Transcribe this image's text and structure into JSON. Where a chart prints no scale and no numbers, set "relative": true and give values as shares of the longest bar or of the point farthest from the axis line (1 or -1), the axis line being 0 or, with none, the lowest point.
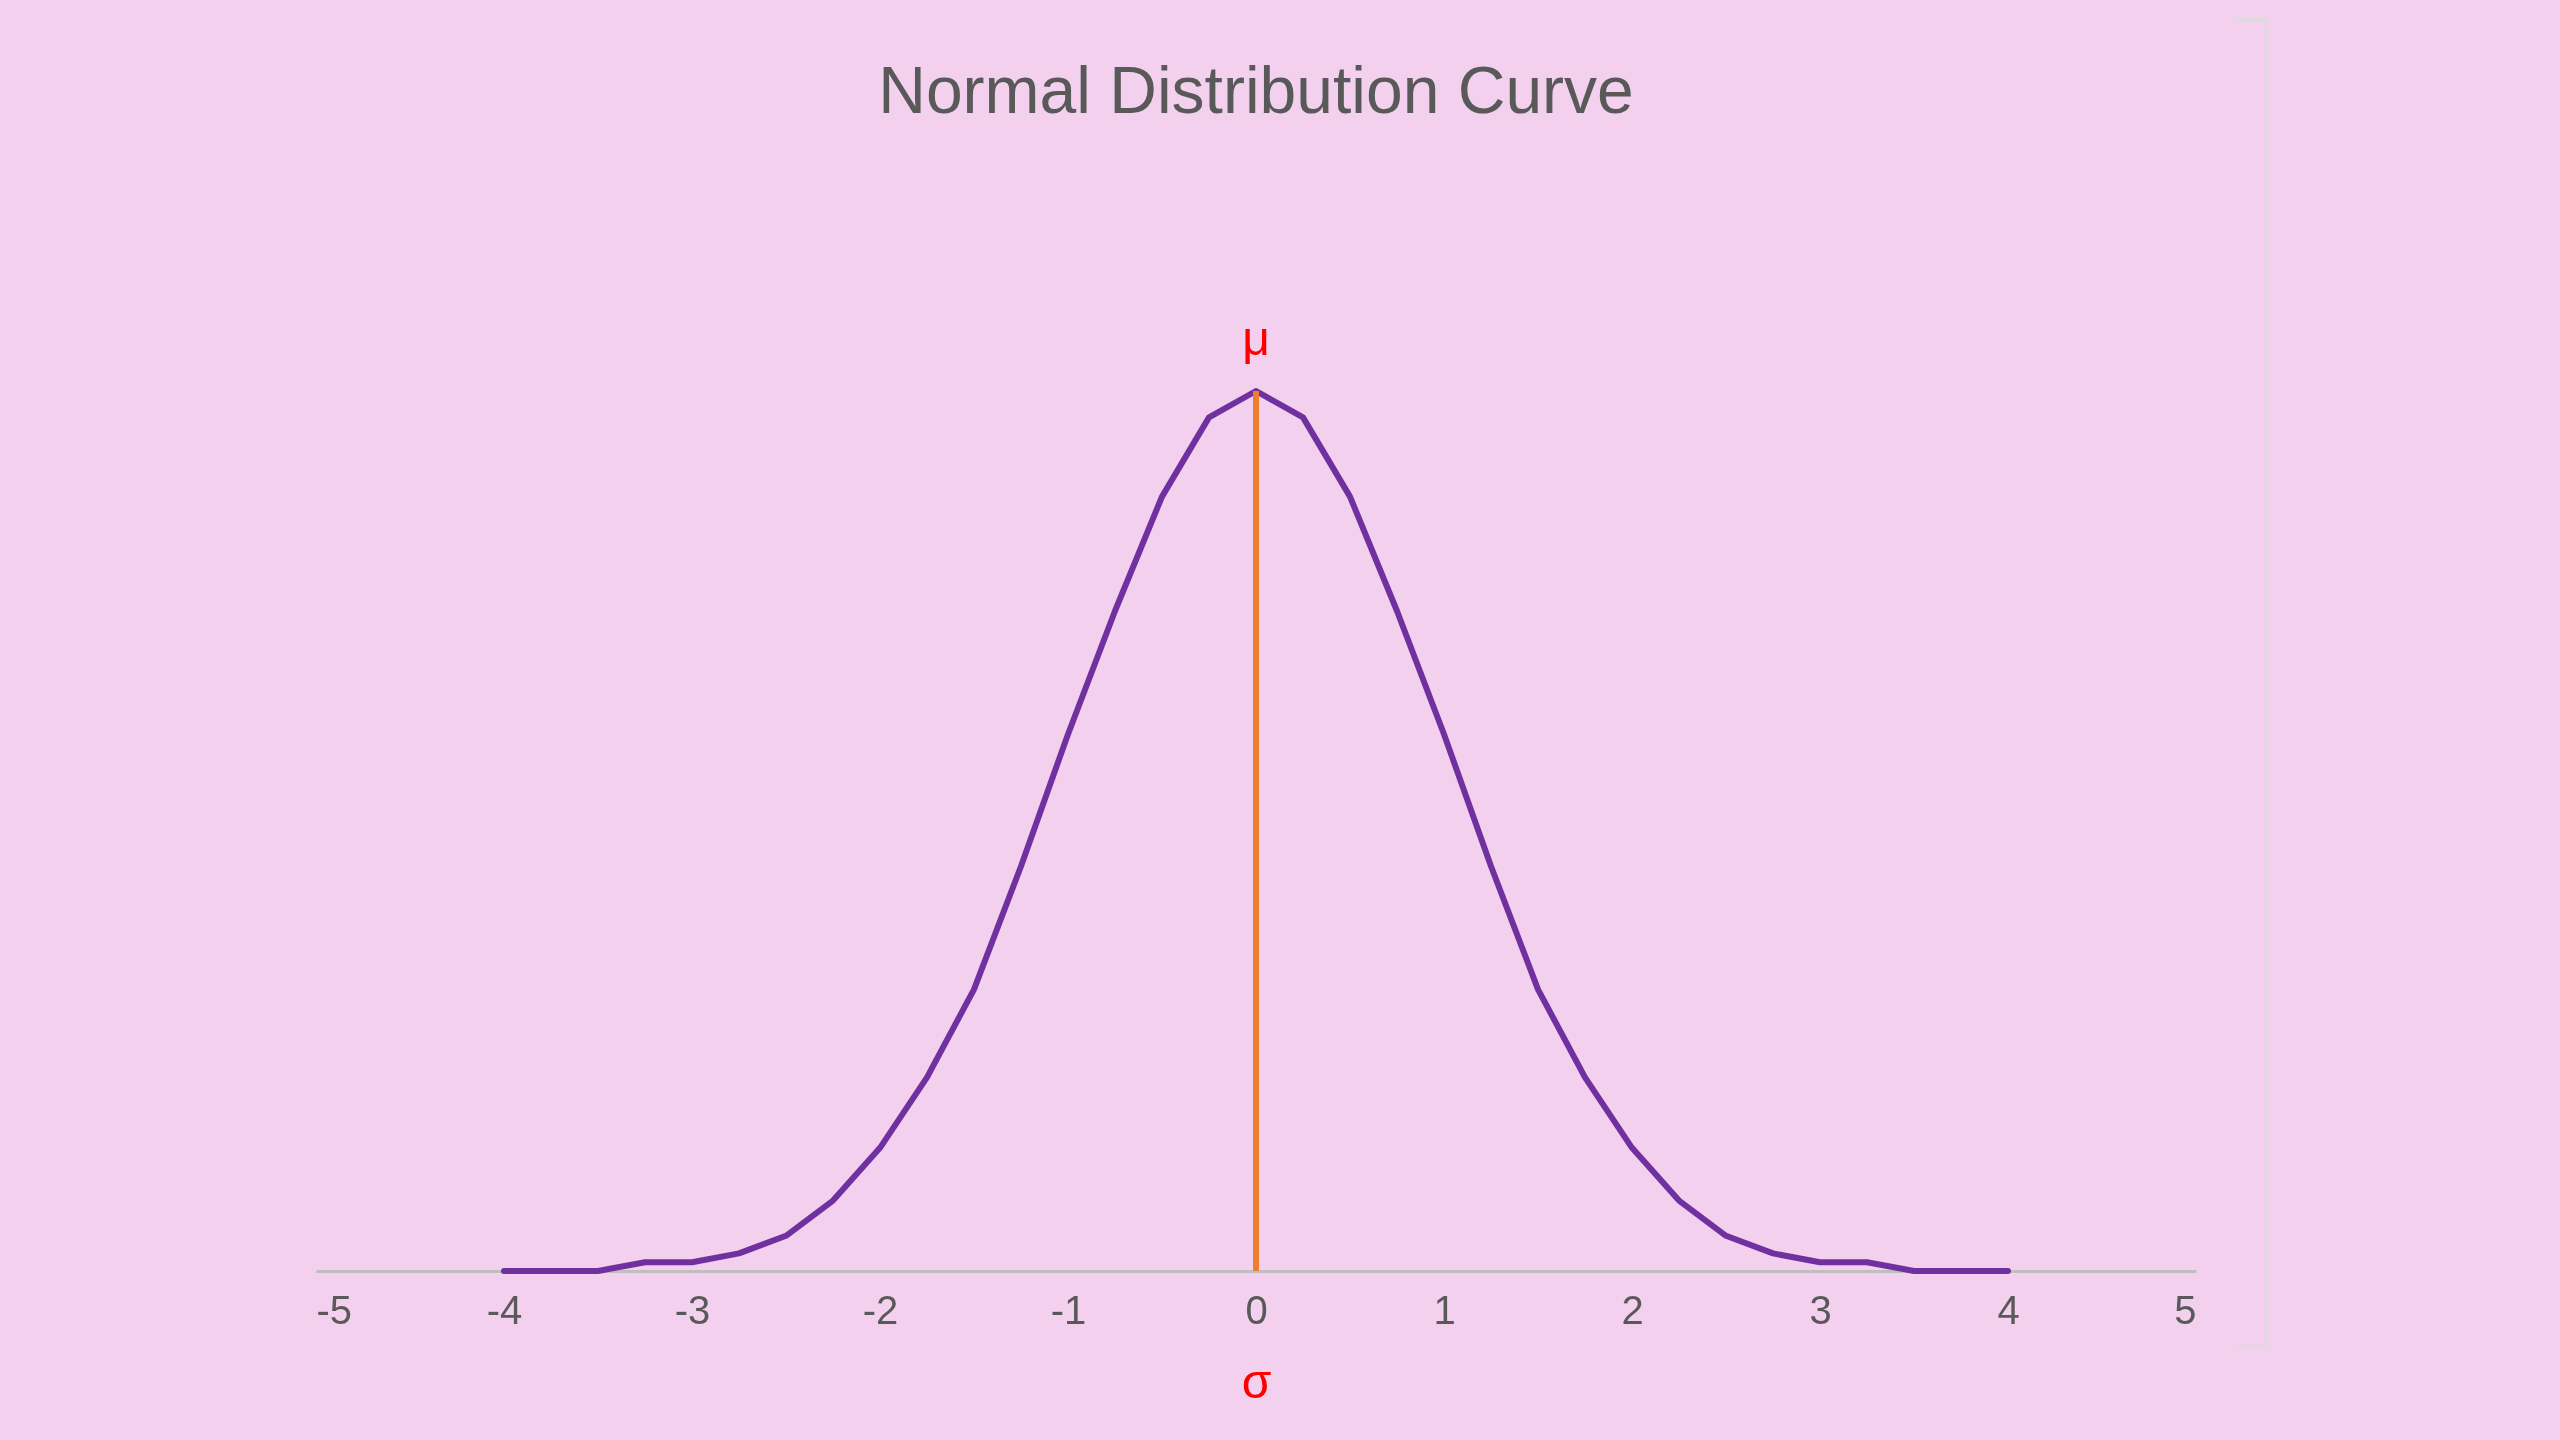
{
  "chart_data": {
    "type": "line",
    "title": "Normal Distribution Curve",
    "xlabel": "σ",
    "relative": true,
    "xlim": [
      -5,
      5
    ],
    "xticks": [
      -5,
      -4,
      -3,
      -2,
      -1,
      0,
      1,
      2,
      3,
      4,
      5
    ],
    "grid": false,
    "legend": false,
    "marker": "none",
    "line_style": "solid",
    "x": [
      -4,
      -3.75,
      -3.5,
      -3.25,
      -3,
      -2.75,
      -2.5,
      -2.25,
      -2,
      -1.75,
      -1.5,
      -1.25,
      -1,
      -0.75,
      -0.5,
      -0.25,
      0,
      0.25,
      0.5,
      0.75,
      1,
      1.25,
      1.5,
      1.75,
      2,
      2.25,
      2.5,
      2.75,
      3,
      3.25,
      3.5,
      3.75,
      4
    ],
    "series": [
      {
        "color": "#7030a0",
        "values": [
          0,
          0,
          0,
          0.01,
          0.01,
          0.02,
          0.04,
          0.08,
          0.14,
          0.22,
          0.32,
          0.46,
          0.61,
          0.75,
          0.88,
          0.97,
          1,
          0.97,
          0.88,
          0.75,
          0.61,
          0.46,
          0.32,
          0.22,
          0.14,
          0.08,
          0.04,
          0.02,
          0.01,
          0.01,
          0,
          0,
          0
        ]
      }
    ],
    "ref_lines": [
      {
        "axis": "x",
        "value": 0,
        "label": "μ",
        "color": "#ed7d31"
      }
    ]
  }
}
